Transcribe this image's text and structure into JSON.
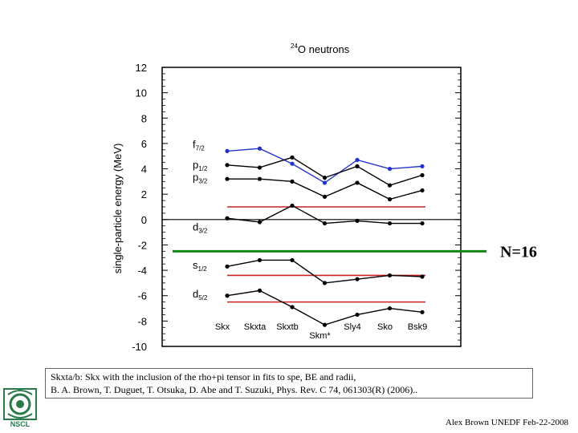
{
  "chart_data": {
    "type": "line",
    "title_super": "24",
    "title": "O neutrons",
    "ylabel": "single-particle energy (MeV)",
    "ylim": [
      -10,
      12
    ],
    "yticks": [
      12,
      10,
      8,
      6,
      4,
      2,
      0,
      -2,
      -4,
      -6,
      -8,
      -10
    ],
    "categories": [
      "Skx",
      "Skxta",
      "Skxtb",
      "Skm*",
      "Sly4",
      "Sko",
      "Bsk9"
    ],
    "category_labels_staggered": [
      false,
      false,
      false,
      true,
      false,
      false,
      false
    ],
    "series": [
      {
        "name": "f7/2",
        "color": "#2233cc",
        "values": [
          5.4,
          5.6,
          4.4,
          2.9,
          4.7,
          4.0,
          4.2
        ]
      },
      {
        "name": "p1/2",
        "color": "#000000",
        "values": [
          4.3,
          4.1,
          4.9,
          3.3,
          4.2,
          2.7,
          3.5
        ]
      },
      {
        "name": "p3/2",
        "color": "#000000",
        "values": [
          3.2,
          3.2,
          3.0,
          1.8,
          2.9,
          1.6,
          2.3
        ]
      },
      {
        "name": "d3/2",
        "color": "#000000",
        "values": [
          0.1,
          -0.2,
          1.1,
          -0.3,
          -0.1,
          -0.3,
          -0.3
        ]
      },
      {
        "name": "s1/2",
        "color": "#000000",
        "values": [
          -3.7,
          -3.2,
          -3.2,
          -5.0,
          -4.7,
          -4.4,
          -4.5
        ]
      },
      {
        "name": "d5/2",
        "color": "#000000",
        "values": [
          -6.0,
          -5.6,
          -6.9,
          -8.3,
          -7.5,
          -7.0,
          -7.3
        ]
      }
    ],
    "reference_lines": [
      {
        "value": 1.0,
        "color": "#cc2222"
      },
      {
        "value": -4.4,
        "color": "#cc2222"
      },
      {
        "value": -6.5,
        "color": "#cc2222"
      }
    ],
    "orbital_labels": [
      {
        "main": "f",
        "sub": "7/2",
        "y": 5.9,
        "color": "#2233cc"
      },
      {
        "main": "p",
        "sub": "1/2",
        "y": 4.3,
        "color": "#000000"
      },
      {
        "main": "p",
        "sub": "3/2",
        "y": 3.3,
        "color": "#000000"
      },
      {
        "main": "d",
        "sub": "3/2",
        "y": -0.6,
        "color": "#000000"
      },
      {
        "main": "s",
        "sub": "1/2",
        "y": -3.6,
        "color": "#000000"
      },
      {
        "main": "d",
        "sub": "5/2",
        "y": -5.9,
        "color": "#000000"
      }
    ],
    "gap_line": {
      "value": -2.5,
      "label": "N=16",
      "color": "#118811"
    },
    "zero_line": true
  },
  "citation": {
    "line1": "Skxta/b: Skx with the inclusion of the rho+pi tensor in fits to spe, BE and radii,",
    "line2": "B. A. Brown, T. Duguet, T. Otsuka, D. Abe and T. Suzuki, Phys. Rev. C 74, 061303(R) (2006).."
  },
  "footer": "Alex Brown UNEDF Feb-22-2008",
  "logo": {
    "text": "NSCL",
    "icon": "nscl-logo-icon",
    "color": "#2a7a4a"
  }
}
